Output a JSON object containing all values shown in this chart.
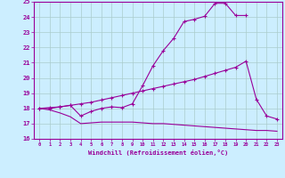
{
  "xlabel": "Windchill (Refroidissement éolien,°C)",
  "bg_color": "#cceeff",
  "grid_color": "#aacccc",
  "line_color": "#990099",
  "xlim": [
    -0.5,
    23.5
  ],
  "ylim": [
    16,
    25
  ],
  "xticks": [
    0,
    1,
    2,
    3,
    4,
    5,
    6,
    7,
    8,
    9,
    10,
    11,
    12,
    13,
    14,
    15,
    16,
    17,
    18,
    19,
    20,
    21,
    22,
    23
  ],
  "yticks": [
    16,
    17,
    18,
    19,
    20,
    21,
    22,
    23,
    24,
    25
  ],
  "line1_x": [
    0,
    1,
    2,
    3,
    4,
    5,
    6,
    7,
    8,
    9,
    10,
    11,
    12,
    13,
    14,
    15,
    16,
    17,
    18,
    19,
    20
  ],
  "line1_y": [
    18.0,
    18.0,
    18.1,
    18.2,
    17.5,
    17.8,
    18.0,
    18.1,
    18.05,
    18.3,
    19.5,
    20.8,
    21.8,
    22.6,
    23.7,
    23.85,
    24.05,
    24.9,
    24.9,
    24.1,
    24.1
  ],
  "line2_x": [
    0,
    1,
    2,
    3,
    4,
    5,
    6,
    7,
    8,
    9,
    10,
    11,
    12,
    13,
    14,
    15,
    16,
    17,
    18,
    19,
    20,
    21,
    22,
    23
  ],
  "line2_y": [
    18.0,
    18.05,
    18.1,
    18.2,
    18.3,
    18.4,
    18.55,
    18.7,
    18.85,
    19.0,
    19.15,
    19.3,
    19.45,
    19.6,
    19.75,
    19.9,
    20.1,
    20.3,
    20.5,
    20.7,
    21.1,
    18.6,
    17.5,
    17.3
  ],
  "line3_x": [
    0,
    1,
    2,
    3,
    4,
    5,
    6,
    7,
    8,
    9,
    10,
    11,
    12,
    13,
    14,
    15,
    16,
    17,
    18,
    19,
    20,
    21,
    22,
    23
  ],
  "line3_y": [
    18.0,
    17.9,
    17.7,
    17.45,
    17.0,
    17.05,
    17.1,
    17.1,
    17.1,
    17.1,
    17.05,
    17.0,
    17.0,
    16.95,
    16.9,
    16.85,
    16.8,
    16.75,
    16.7,
    16.65,
    16.6,
    16.55,
    16.55,
    16.5
  ]
}
